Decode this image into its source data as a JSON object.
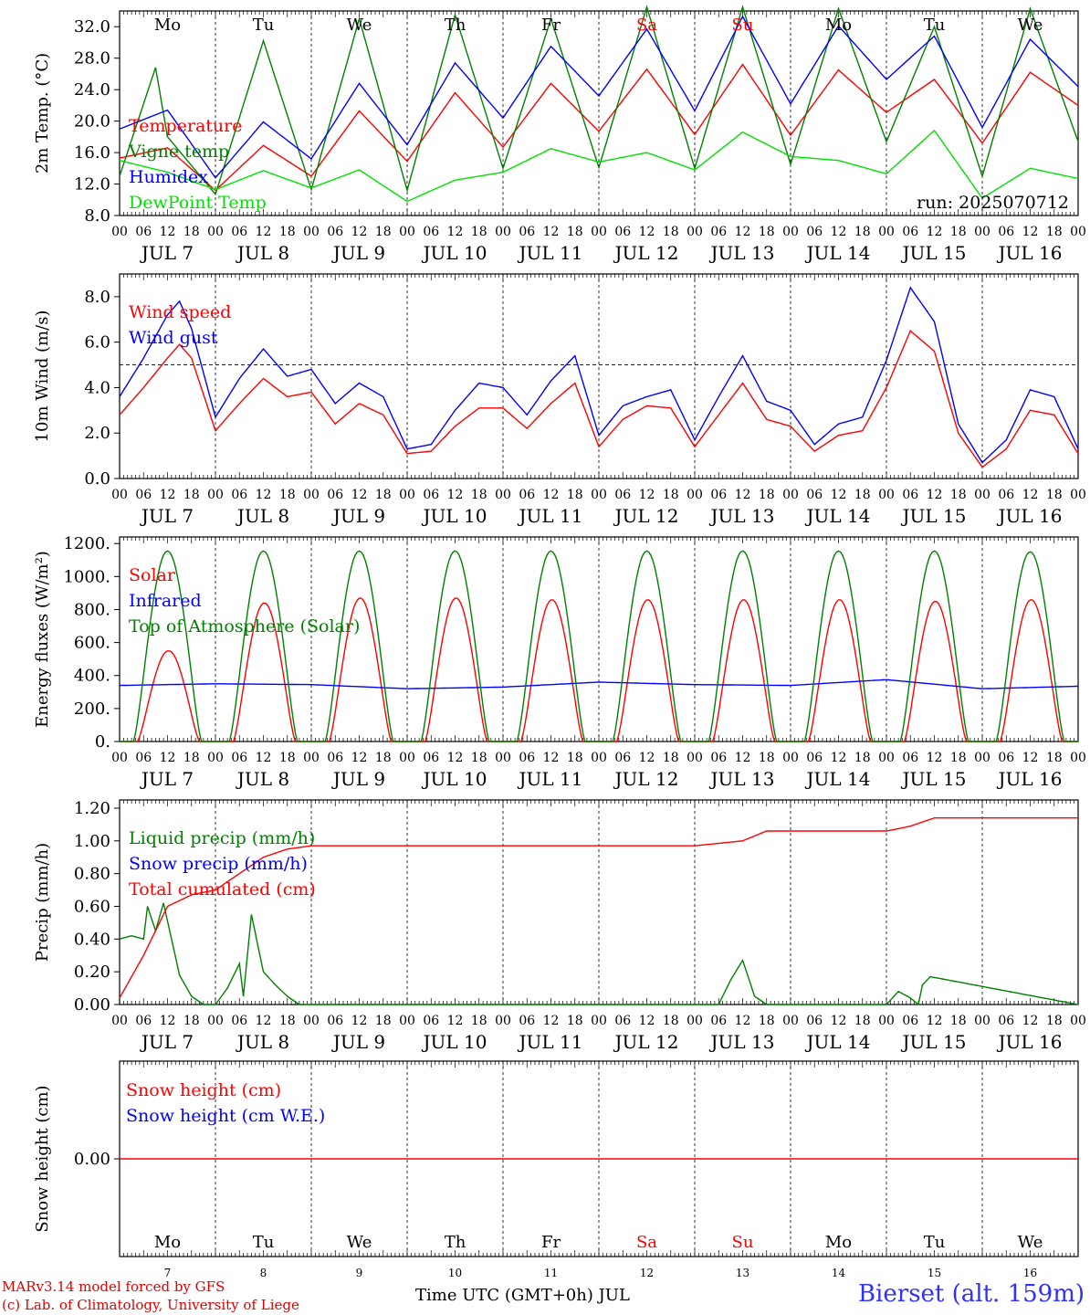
{
  "chart_data": [
    {
      "type": "line",
      "id": "temperature",
      "ylabel": "2m Temp. (°C)",
      "ylim": [
        8,
        34
      ],
      "yticks": [
        "8.0",
        "12.0",
        "16.0",
        "20.0",
        "24.0",
        "28.0",
        "32.0"
      ],
      "ytick_values": [
        8,
        12,
        16,
        20,
        24,
        28,
        32
      ],
      "annotation": "run: 2025070712",
      "legend": [
        {
          "name": "Temperature",
          "color": "#ff0000"
        },
        {
          "name": "Vigne temp",
          "color": "#008000"
        },
        {
          "name": "Humidex",
          "color": "#0000ff"
        },
        {
          "name": "DewPoint Temp",
          "color": "#00e000"
        }
      ],
      "series": [
        {
          "name": "Temperature",
          "color": "#ff0000",
          "x": [
            0,
            12,
            24,
            36,
            48,
            60,
            72,
            84,
            96,
            108,
            120,
            132,
            144,
            156,
            168,
            180,
            192,
            204,
            216,
            228,
            240
          ],
          "values": [
            15.3,
            16.6,
            11.2,
            16.9,
            13.0,
            21.3,
            14.9,
            23.6,
            16.7,
            24.8,
            18.7,
            26.6,
            18.3,
            27.2,
            18.2,
            26.5,
            21.1,
            25.3,
            17.2,
            26.2,
            22.0
          ]
        },
        {
          "name": "Vigne temp",
          "color": "#008000",
          "x": [
            0,
            9,
            12,
            24,
            36,
            48,
            60,
            72,
            84,
            96,
            108,
            120,
            132,
            144,
            156,
            168,
            180,
            192,
            204,
            216,
            228,
            240
          ],
          "values": [
            13.0,
            26.8,
            18.0,
            10.7,
            30.2,
            11.3,
            33.0,
            11.2,
            33.5,
            14.0,
            33.0,
            14.1,
            34.5,
            14.0,
            34.5,
            14.5,
            34.3,
            17.4,
            32.0,
            13.0,
            34.3,
            17.4
          ]
        },
        {
          "name": "Humidex",
          "color": "#0000ff",
          "x": [
            0,
            12,
            24,
            36,
            48,
            60,
            72,
            84,
            96,
            108,
            120,
            132,
            144,
            156,
            168,
            180,
            192,
            204,
            216,
            228,
            240
          ],
          "values": [
            19.0,
            21.4,
            12.8,
            19.9,
            15.2,
            24.8,
            17.0,
            27.4,
            20.4,
            29.5,
            23.2,
            31.7,
            21.3,
            33.3,
            22.2,
            32.1,
            25.3,
            30.8,
            19.2,
            30.4,
            24.4
          ]
        },
        {
          "name": "DewPoint Temp",
          "color": "#00e000",
          "x": [
            0,
            12,
            24,
            36,
            48,
            60,
            72,
            84,
            96,
            108,
            120,
            132,
            144,
            156,
            168,
            180,
            192,
            204,
            216,
            228,
            240
          ],
          "values": [
            15.0,
            13.5,
            11.3,
            13.7,
            11.5,
            13.8,
            9.8,
            12.5,
            13.5,
            16.5,
            14.8,
            16.0,
            13.8,
            18.6,
            15.5,
            15.0,
            13.3,
            18.8,
            10.2,
            14.0,
            12.7
          ]
        }
      ]
    },
    {
      "type": "line",
      "id": "wind",
      "ylabel": "10m Wind (m/s)",
      "ylim": [
        0,
        9
      ],
      "yticks": [
        "0.0",
        "2.0",
        "4.0",
        "6.0",
        "8.0"
      ],
      "ytick_values": [
        0,
        2,
        4,
        6,
        8
      ],
      "reference_line": 5,
      "legend": [
        {
          "name": "Wind speed",
          "color": "#ff0000"
        },
        {
          "name": "Wind gust",
          "color": "#0000ff"
        }
      ],
      "series": [
        {
          "name": "Wind speed",
          "color": "#ff0000",
          "x": [
            0,
            6,
            12,
            15,
            18,
            24,
            30,
            36,
            42,
            48,
            54,
            60,
            66,
            72,
            78,
            84,
            90,
            96,
            102,
            108,
            114,
            120,
            126,
            132,
            138,
            144,
            150,
            156,
            162,
            168,
            174,
            180,
            186,
            192,
            198,
            204,
            210,
            216,
            222,
            228,
            234,
            240
          ],
          "values": [
            2.8,
            4.0,
            5.3,
            5.9,
            5.3,
            2.1,
            3.3,
            4.4,
            3.6,
            3.8,
            2.4,
            3.3,
            2.8,
            1.1,
            1.2,
            2.3,
            3.1,
            3.1,
            2.2,
            3.3,
            4.2,
            1.4,
            2.6,
            3.2,
            3.1,
            1.4,
            2.8,
            4.2,
            2.6,
            2.3,
            1.2,
            1.9,
            2.1,
            4.0,
            6.5,
            5.6,
            2.0,
            0.5,
            1.3,
            3.0,
            2.8,
            1.1
          ]
        },
        {
          "name": "Wind gust",
          "color": "#0000ff",
          "x": [
            0,
            6,
            12,
            15,
            18,
            24,
            30,
            36,
            42,
            48,
            54,
            60,
            66,
            72,
            78,
            84,
            90,
            96,
            102,
            108,
            114,
            120,
            126,
            132,
            138,
            144,
            150,
            156,
            162,
            168,
            174,
            180,
            186,
            192,
            198,
            204,
            210,
            216,
            222,
            228,
            234,
            240
          ],
          "values": [
            3.6,
            5.3,
            7.2,
            7.8,
            6.6,
            2.7,
            4.4,
            5.7,
            4.5,
            4.8,
            3.3,
            4.2,
            3.6,
            1.3,
            1.5,
            3.0,
            4.2,
            4.0,
            2.8,
            4.3,
            5.4,
            1.9,
            3.2,
            3.6,
            3.9,
            1.7,
            3.6,
            5.4,
            3.4,
            3.0,
            1.5,
            2.4,
            2.7,
            5.2,
            8.4,
            6.9,
            2.4,
            0.7,
            1.7,
            3.9,
            3.6,
            1.3
          ]
        }
      ]
    },
    {
      "type": "line",
      "id": "energy",
      "ylabel": "Energy fluxes (W/m²)",
      "ylim": [
        0,
        1200
      ],
      "yticks": [
        "0.",
        "200.",
        "400.",
        "600.",
        "800.",
        "1000.",
        "1200."
      ],
      "ytick_values": [
        0,
        200,
        400,
        600,
        800,
        1000,
        1200
      ],
      "legend": [
        {
          "name": "Solar",
          "color": "#ff0000"
        },
        {
          "name": "Infrared",
          "color": "#0000ff"
        },
        {
          "name": "Top of Atmosphere (Solar)",
          "color": "#008000"
        }
      ],
      "series": [
        {
          "name": "Solar",
          "color": "#ff0000",
          "day_peaks": [
            550,
            840,
            870,
            870,
            860,
            860,
            860,
            860,
            850,
            860
          ]
        },
        {
          "name": "Infrared",
          "color": "#0000ff",
          "x": [
            0,
            24,
            48,
            72,
            96,
            120,
            144,
            168,
            192,
            216,
            240
          ],
          "values": [
            340,
            350,
            345,
            320,
            330,
            360,
            345,
            340,
            375,
            320,
            335
          ]
        },
        {
          "name": "Top of Atmosphere (Solar)",
          "color": "#008000",
          "day_peaks": [
            1155,
            1155,
            1155,
            1155,
            1155,
            1155,
            1155,
            1155,
            1155,
            1150
          ]
        }
      ]
    },
    {
      "type": "line",
      "id": "precip",
      "ylabel": "Precip (mm/h)",
      "ylim": [
        0,
        1.2
      ],
      "yticks": [
        "0.00",
        "0.20",
        "0.40",
        "0.60",
        "0.80",
        "1.00",
        "1.20"
      ],
      "ytick_values": [
        0,
        0.2,
        0.4,
        0.6,
        0.8,
        1.0,
        1.2
      ],
      "legend": [
        {
          "name": "Liquid precip (mm/h)",
          "color": "#008000"
        },
        {
          "name": "Snow precip (mm/h)",
          "color": "#0000ff"
        },
        {
          "name": "Total cumulated (cm)",
          "color": "#ff0000"
        }
      ],
      "series": [
        {
          "name": "Liquid precip (mm/h)",
          "color": "#008000",
          "x": [
            0,
            3,
            6,
            7,
            9,
            11,
            13,
            15,
            18,
            21,
            24,
            27,
            30,
            31,
            33,
            36,
            39,
            42,
            45,
            48,
            150,
            153,
            156,
            159,
            162,
            192,
            195,
            198,
            200,
            201,
            203,
            240
          ],
          "values": [
            0.4,
            0.42,
            0.4,
            0.6,
            0.45,
            0.62,
            0.4,
            0.18,
            0.05,
            0.0,
            0.0,
            0.1,
            0.25,
            0.05,
            0.55,
            0.2,
            0.12,
            0.05,
            0.0,
            0.0,
            0.0,
            0.15,
            0.27,
            0.05,
            0.0,
            0.0,
            0.08,
            0.04,
            0.0,
            0.12,
            0.17,
            0.0
          ]
        },
        {
          "name": "Total cumulated (cm)",
          "color": "#ff0000",
          "x": [
            0,
            6,
            12,
            18,
            24,
            30,
            36,
            42,
            48,
            72,
            144,
            156,
            162,
            192,
            198,
            204,
            240
          ],
          "values": [
            0.04,
            0.3,
            0.6,
            0.67,
            0.7,
            0.8,
            0.9,
            0.95,
            0.97,
            0.97,
            0.97,
            1.0,
            1.06,
            1.06,
            1.09,
            1.14,
            1.14
          ]
        }
      ]
    },
    {
      "type": "line",
      "id": "snow",
      "ylabel": "Snow height (cm)",
      "yticks": [
        "0.00"
      ],
      "ytick_values": [
        0
      ],
      "legend": [
        {
          "name": "Snow height (cm)",
          "color": "#ff0000"
        },
        {
          "name": "Snow height (cm W.E.)",
          "color": "#0000ff"
        }
      ],
      "series": [
        {
          "name": "Snow height (cm)",
          "color": "#ff0000",
          "x": [
            0,
            240
          ],
          "values": [
            0,
            0
          ]
        }
      ]
    }
  ],
  "day_abbrev": [
    "Mo",
    "Tu",
    "We",
    "Th",
    "Fr",
    "Sa",
    "Su",
    "Mo",
    "Tu",
    "We"
  ],
  "day_abbrev_colors": [
    "#000000",
    "#000000",
    "#000000",
    "#000000",
    "#000000",
    "#ff0000",
    "#ff0000",
    "#000000",
    "#000000",
    "#000000"
  ],
  "date_labels": [
    "JUL  7",
    "JUL  8",
    "JUL  9",
    "JUL 10",
    "JUL 11",
    "JUL 12",
    "JUL 13",
    "JUL 14",
    "JUL 15",
    "JUL 16"
  ],
  "day_numbers": [
    "7",
    "8",
    "9",
    "10",
    "11",
    "12",
    "13",
    "14",
    "15",
    "16"
  ],
  "hour_ticks": [
    "00",
    "06",
    "12",
    "18"
  ],
  "xaxis_label": "Time UTC (GMT+0h) JUL",
  "credit_line1": "MARv3.14 model forced by GFS",
  "credit_line2": "(c) Lab. of Climatology, University of Liege",
  "station": "Bierset (alt. 159m)"
}
